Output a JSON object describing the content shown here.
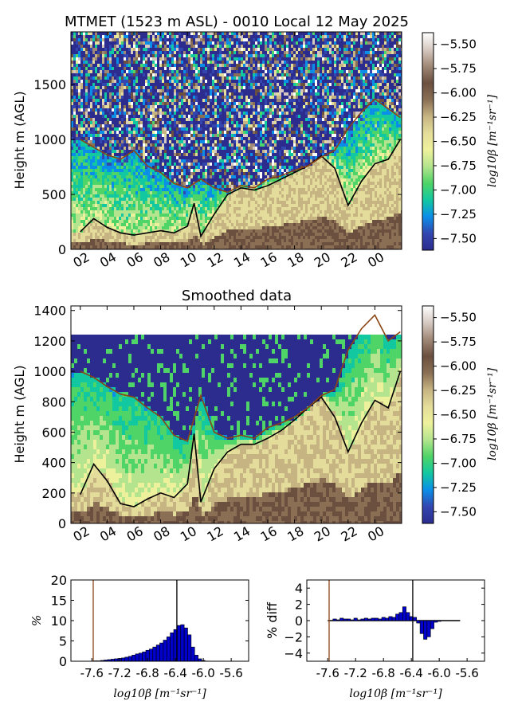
{
  "figure": {
    "colormap": [
      "#2b2c8e",
      "#3346b0",
      "#0b8ee8",
      "#12c8a0",
      "#4fd467",
      "#b5e48e",
      "#eef19c",
      "#e4dc9a",
      "#c6b482",
      "#8a6f55",
      "#6b5040",
      "#a08876",
      "#d6c9c2",
      "#ffffff"
    ],
    "colorbar_ticks": [
      "-5.50",
      "-5.75",
      "-6.00",
      "-6.25",
      "-6.50",
      "-6.75",
      "-7.00",
      "-7.25",
      "-7.50"
    ],
    "colorbar_label": "log10β [m⁻¹sr⁻¹]",
    "line_colors": {
      "black": "#000000",
      "brown": "#8b4513"
    }
  },
  "chart_data": [
    {
      "type": "heatmap",
      "title": "MTMET (1523 m ASL) - 0010 Local 12 May 2025",
      "ylabel": "Height m (AGL)",
      "xticks": [
        "02",
        "04",
        "06",
        "08",
        "10",
        "12",
        "14",
        "16",
        "18",
        "20",
        "22",
        "00"
      ],
      "yticks": [
        "0",
        "500",
        "1000",
        "1500"
      ],
      "ylim": [
        0,
        1980
      ],
      "x_hours": [
        1,
        3,
        5,
        7,
        9,
        11,
        13,
        15,
        17,
        19,
        21,
        23,
        24.7
      ],
      "series": [
        {
          "name": "",
          "color": "black",
          "x": [
            1,
            2,
            3,
            4,
            5,
            6,
            7,
            8,
            9,
            9.5,
            10,
            11,
            12,
            13,
            14,
            15,
            16,
            17,
            18,
            19,
            20,
            21,
            22,
            23,
            24,
            24.9
          ],
          "values": [
            160,
            280,
            200,
            150,
            130,
            150,
            170,
            150,
            210,
            420,
            120,
            320,
            500,
            560,
            540,
            580,
            640,
            700,
            760,
            850,
            740,
            400,
            620,
            780,
            820,
            1000
          ]
        },
        {
          "name": "",
          "color": "brown",
          "x": [
            1,
            2,
            3,
            4,
            5,
            6,
            7,
            8,
            9,
            10,
            11,
            12,
            13,
            14,
            15,
            16,
            17,
            18,
            19,
            20,
            21,
            22,
            23,
            24,
            24.9
          ],
          "values": [
            1000,
            930,
            860,
            820,
            900,
            760,
            700,
            600,
            560,
            640,
            560,
            520,
            580,
            560,
            640,
            670,
            720,
            760,
            840,
            900,
            1100,
            1250,
            1370,
            1280,
            1200
          ]
        }
      ]
    },
    {
      "type": "heatmap",
      "title": "Smoothed data",
      "ylabel": "Height m (AGL)",
      "xticks": [
        "02",
        "04",
        "06",
        "08",
        "10",
        "12",
        "14",
        "16",
        "18",
        "20",
        "22",
        "00"
      ],
      "yticks": [
        "0",
        "200",
        "400",
        "600",
        "800",
        "1000",
        "1200",
        "1400"
      ],
      "ylim": [
        0,
        1430
      ],
      "series": [
        {
          "name": "",
          "color": "black",
          "x": [
            1,
            2,
            3,
            4,
            5,
            6,
            7,
            8,
            9,
            9.5,
            10,
            11,
            12,
            13,
            14,
            15,
            16,
            17,
            18,
            19,
            20,
            21,
            22,
            23,
            24,
            24.9
          ],
          "values": [
            190,
            390,
            280,
            130,
            110,
            160,
            200,
            170,
            260,
            590,
            140,
            360,
            470,
            520,
            520,
            560,
            610,
            680,
            760,
            830,
            700,
            470,
            660,
            810,
            760,
            1000
          ]
        },
        {
          "name": "",
          "color": "brown",
          "x": [
            1,
            2,
            3,
            4,
            5,
            6,
            7,
            8,
            9,
            10,
            11,
            12,
            13,
            14,
            15,
            16,
            17,
            18,
            19,
            20,
            21,
            22,
            23,
            24,
            24.9
          ],
          "values": [
            1000,
            960,
            900,
            850,
            830,
            760,
            700,
            580,
            540,
            840,
            600,
            560,
            580,
            560,
            630,
            660,
            700,
            760,
            840,
            880,
            1140,
            1280,
            1370,
            1200,
            1260
          ]
        }
      ]
    },
    {
      "type": "bar",
      "ylabel": "%",
      "xlabel": "log10β [m⁻¹sr⁻¹]",
      "xticks": [
        "-7.6",
        "-7.2",
        "-6.8",
        "-6.4",
        "-6.0",
        "-5.6"
      ],
      "yticks": [
        "0",
        "5",
        "10",
        "15",
        "20"
      ],
      "xlim": [
        -7.9,
        -5.35
      ],
      "ylim": [
        0,
        20
      ],
      "x": [
        -7.55,
        -7.5,
        -7.45,
        -7.4,
        -7.35,
        -7.3,
        -7.25,
        -7.2,
        -7.15,
        -7.1,
        -7.05,
        -7.0,
        -6.95,
        -6.9,
        -6.85,
        -6.8,
        -6.75,
        -6.7,
        -6.65,
        -6.6,
        -6.55,
        -6.5,
        -6.45,
        -6.4,
        -6.35,
        -6.3,
        -6.25,
        -6.2,
        -6.15,
        -6.1,
        -6.05,
        -6.0,
        -5.95
      ],
      "values": [
        0.1,
        0.1,
        0.2,
        0.3,
        0.4,
        0.5,
        0.6,
        0.7,
        0.8,
        1.0,
        1.2,
        1.5,
        1.8,
        2.0,
        2.3,
        2.7,
        3.0,
        3.5,
        4.0,
        4.5,
        5.2,
        6.0,
        7.0,
        7.8,
        8.8,
        9.0,
        8.2,
        6.5,
        3.5,
        1.5,
        0.6,
        0.2,
        0.05
      ],
      "vlines": [
        {
          "x": -7.58,
          "color": "brown"
        },
        {
          "x": -6.38,
          "color": "black"
        }
      ]
    },
    {
      "type": "bar",
      "ylabel": "% diff",
      "xlabel": "log10β [m⁻¹sr⁻¹]",
      "xticks": [
        "-7.6",
        "-7.2",
        "-6.8",
        "-6.4",
        "-6.0",
        "-5.6"
      ],
      "yticks": [
        "4",
        "2",
        "0",
        "-2",
        "-4"
      ],
      "xlim": [
        -7.9,
        -5.35
      ],
      "ylim": [
        -5,
        5
      ],
      "x": [
        -7.55,
        -7.5,
        -7.45,
        -7.4,
        -7.35,
        -7.3,
        -7.25,
        -7.2,
        -7.15,
        -7.1,
        -7.05,
        -7.0,
        -6.95,
        -6.9,
        -6.85,
        -6.8,
        -6.75,
        -6.7,
        -6.65,
        -6.6,
        -6.55,
        -6.5,
        -6.45,
        -6.4,
        -6.35,
        -6.3,
        -6.25,
        -6.2,
        -6.15,
        -6.1,
        -6.05,
        -6.0
      ],
      "values": [
        0,
        0.2,
        0.1,
        0.3,
        0.2,
        0.2,
        0.1,
        0.3,
        0.1,
        0.2,
        0.3,
        0.2,
        0.3,
        0.3,
        0.2,
        0.4,
        0.3,
        0.5,
        0.4,
        0.8,
        1.0,
        1.7,
        1.0,
        0.5,
        0.4,
        -0.3,
        -1.6,
        -2.3,
        -2.0,
        -1.0,
        -0.2,
        -0.1
      ],
      "zero_line_xlim": [
        -7.6,
        -5.7
      ],
      "vlines": [
        {
          "x": -7.58,
          "color": "brown"
        },
        {
          "x": -6.38,
          "color": "black"
        }
      ]
    }
  ]
}
